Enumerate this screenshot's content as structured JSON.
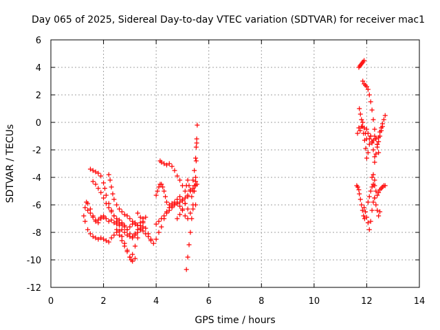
{
  "chart_data": {
    "type": "scatter",
    "title": "Day 065 of 2025, Sidereal Day-to-day VTEC variation (SDTVAR) for receiver mac1",
    "xlabel": "GPS time / hours",
    "ylabel": "SDTVAR / TECUs",
    "xlim": [
      0,
      14
    ],
    "ylim": [
      -12,
      6
    ],
    "grid": true,
    "marker": "+",
    "color": "#ff0000",
    "xticks": [
      {
        "value": 0,
        "label": "0"
      },
      {
        "value": 2,
        "label": "2"
      },
      {
        "value": 4,
        "label": "4"
      },
      {
        "value": 6,
        "label": "6"
      },
      {
        "value": 8,
        "label": "8"
      },
      {
        "value": 10,
        "label": "10"
      },
      {
        "value": 12,
        "label": "12"
      },
      {
        "value": 14,
        "label": "14"
      }
    ],
    "yticks": [
      {
        "value": -12,
        "label": "-12"
      },
      {
        "value": -10,
        "label": "-10"
      },
      {
        "value": -8,
        "label": "-8"
      },
      {
        "value": -6,
        "label": "-6"
      },
      {
        "value": -4,
        "label": "-4"
      },
      {
        "value": -2,
        "label": "-2"
      },
      {
        "value": 0,
        "label": "0"
      },
      {
        "value": 2,
        "label": "2"
      },
      {
        "value": 4,
        "label": "4"
      },
      {
        "value": 6,
        "label": "6"
      }
    ],
    "series": [
      {
        "name": "trace-1",
        "x": [
          1.25,
          1.3,
          1.35,
          1.4,
          1.5,
          1.6,
          1.7,
          1.8,
          1.9,
          2.0
        ],
        "y": [
          -6.8,
          -6.2,
          -5.8,
          -5.9,
          -6.3,
          -6.8,
          -7.2,
          -7.1,
          -6.9,
          -6.8
        ]
      },
      {
        "name": "trace-2",
        "x": [
          1.3,
          1.4,
          1.5,
          1.6,
          1.7,
          1.8,
          1.9,
          2.0,
          2.1,
          2.2,
          2.3,
          2.4,
          2.5,
          2.6,
          2.7,
          2.8,
          2.9,
          3.0,
          3.1,
          3.2
        ],
        "y": [
          -7.2,
          -7.8,
          -8.1,
          -8.3,
          -8.4,
          -8.5,
          -8.4,
          -8.5,
          -8.6,
          -8.7,
          -8.4,
          -8.2,
          -8.0,
          -7.9,
          -8.3,
          -8.8,
          -9.3,
          -9.8,
          -10.1,
          -9.9
        ]
      },
      {
        "name": "trace-3",
        "x": [
          1.5,
          1.6,
          1.7,
          1.8,
          1.9,
          2.0,
          2.05,
          2.1,
          2.2,
          2.3,
          2.4,
          2.5,
          2.6,
          2.7,
          2.8,
          2.9,
          3.0,
          3.1,
          3.2,
          3.3,
          3.4,
          3.5
        ],
        "y": [
          -3.4,
          -3.5,
          -3.6,
          -3.7,
          -3.9,
          -4.4,
          -4.8,
          -5.3,
          -5.9,
          -6.4,
          -6.8,
          -7.2,
          -7.5,
          -7.8,
          -8.0,
          -8.2,
          -8.3,
          -8.4,
          -8.2,
          -8.0,
          -7.8,
          -7.6
        ]
      },
      {
        "name": "trace-4",
        "x": [
          1.4,
          1.5,
          1.6,
          1.7,
          1.8,
          1.9,
          2.0,
          2.1,
          2.2,
          2.3,
          2.4,
          2.5,
          2.6,
          2.7,
          2.8,
          2.9,
          3.0,
          3.1,
          3.2,
          3.3,
          3.4,
          3.5,
          3.6,
          3.7,
          3.8
        ],
        "y": [
          -6.4,
          -6.6,
          -6.9,
          -7.1,
          -7.3,
          -7.0,
          -6.9,
          -7.0,
          -7.2,
          -7.1,
          -7.3,
          -7.4,
          -7.3,
          -7.4,
          -7.6,
          -7.8,
          -7.6,
          -7.4,
          -7.3,
          -7.5,
          -7.7,
          -7.9,
          -8.1,
          -8.3,
          -8.6
        ]
      },
      {
        "name": "trace-5",
        "x": [
          1.6,
          1.7,
          1.8,
          1.9,
          2.0,
          2.1,
          2.2,
          2.3,
          2.4,
          2.5,
          2.6,
          2.7,
          2.8,
          2.9,
          3.0,
          3.1,
          3.2,
          3.3,
          3.4
        ],
        "y": [
          -4.3,
          -4.5,
          -4.8,
          -5.1,
          -5.5,
          -5.9,
          -6.2,
          -6.5,
          -6.8,
          -7.0,
          -7.1,
          -7.3,
          -7.5,
          -7.8,
          -8.1,
          -8.3,
          -8.1,
          -7.8,
          -7.5
        ]
      },
      {
        "name": "trace-6",
        "x": [
          2.2,
          2.25,
          2.3,
          2.35,
          2.4,
          2.5,
          2.6,
          2.7,
          2.8,
          2.9,
          3.0,
          3.1,
          3.2,
          3.3,
          3.4,
          3.5,
          3.6
        ],
        "y": [
          -3.8,
          -4.2,
          -4.7,
          -5.2,
          -5.6,
          -6.0,
          -6.3,
          -6.5,
          -6.7,
          -6.8,
          -7.0,
          -7.2,
          -7.4,
          -7.5,
          -7.3,
          -7.0,
          -6.9
        ]
      },
      {
        "name": "trace-7",
        "x": [
          2.5,
          2.6,
          2.7,
          2.8,
          2.9,
          3.0,
          3.05,
          3.1,
          3.2,
          3.3,
          3.4,
          3.5
        ],
        "y": [
          -7.8,
          -8.2,
          -8.6,
          -9.0,
          -9.4,
          -9.8,
          -10.0,
          -9.6,
          -9.0,
          -8.4,
          -7.8,
          -7.2
        ]
      },
      {
        "name": "trace-8",
        "x": [
          3.3,
          3.4,
          3.5,
          3.6,
          3.7,
          3.8,
          3.9,
          4.0,
          4.1,
          4.2,
          4.3,
          4.4,
          4.5,
          4.6,
          4.7,
          4.8,
          4.9,
          5.0,
          5.1,
          5.2
        ],
        "y": [
          -6.6,
          -6.9,
          -7.3,
          -7.7,
          -8.1,
          -8.5,
          -8.8,
          -8.5,
          -8.0,
          -7.6,
          -7.0,
          -6.6,
          -6.4,
          -6.2,
          -6.0,
          -5.9,
          -6.1,
          -6.4,
          -6.8,
          -7.0
        ]
      },
      {
        "name": "trace-9",
        "x": [
          4.0,
          4.1,
          4.2,
          4.3,
          4.4,
          4.5,
          4.6,
          4.7,
          4.8,
          4.9,
          5.0,
          5.1,
          5.2,
          5.3,
          5.4,
          5.5
        ],
        "y": [
          -7.4,
          -7.2,
          -7.0,
          -6.8,
          -6.5,
          -6.2,
          -5.9,
          -5.8,
          -5.6,
          -5.4,
          -5.6,
          -5.9,
          -6.3,
          -6.6,
          -6.3,
          -6.0
        ]
      },
      {
        "name": "trace-10",
        "x": [
          4.0,
          4.05,
          4.1,
          4.15,
          4.2,
          4.25,
          4.3,
          4.35,
          4.4,
          4.5,
          4.6,
          4.7,
          4.8,
          4.9,
          5.0,
          5.1,
          5.2,
          5.3,
          5.4,
          5.5
        ],
        "y": [
          -5.3,
          -5.0,
          -4.7,
          -4.5,
          -4.5,
          -4.7,
          -5.0,
          -5.4,
          -5.8,
          -6.0,
          -6.1,
          -6.0,
          -5.9,
          -5.8,
          -5.7,
          -5.5,
          -5.3,
          -5.0,
          -4.8,
          -4.6
        ]
      },
      {
        "name": "trace-11",
        "x": [
          4.15,
          4.2,
          4.3,
          4.4,
          4.5,
          4.6,
          4.7,
          4.8,
          4.9,
          5.0,
          5.1,
          5.15,
          5.2,
          5.25,
          5.3,
          5.35,
          5.4,
          5.45,
          5.5,
          5.55
        ],
        "y": [
          -2.8,
          -2.9,
          -3.0,
          -3.1,
          -3.0,
          -3.2,
          -3.5,
          -3.9,
          -4.2,
          -4.6,
          -5.0,
          -4.6,
          -4.2,
          -4.6,
          -5.0,
          -5.4,
          -5.0,
          -4.6,
          -4.3,
          -4.5
        ]
      },
      {
        "name": "trace-12",
        "x": [
          5.15,
          5.2,
          5.25,
          5.3,
          5.35,
          5.4,
          5.45,
          5.5,
          5.52,
          5.54,
          5.56
        ],
        "y": [
          -10.7,
          -9.8,
          -8.9,
          -8.0,
          -7.0,
          -6.0,
          -5.0,
          -4.0,
          -2.8,
          -1.5,
          -0.2
        ]
      },
      {
        "name": "trace-13",
        "x": [
          4.8,
          4.9,
          5.0,
          5.1,
          5.2,
          5.3,
          5.4,
          5.45,
          5.5,
          5.52,
          5.54
        ],
        "y": [
          -7.0,
          -6.7,
          -6.3,
          -5.9,
          -5.4,
          -4.9,
          -4.2,
          -3.5,
          -2.6,
          -1.8,
          -1.2
        ]
      },
      {
        "name": "trace-14",
        "x": [
          11.62,
          11.66,
          11.7
        ],
        "y": [
          -4.6,
          -4.7,
          -4.9
        ]
      },
      {
        "name": "trace-15",
        "x": [
          11.72,
          11.76,
          11.8,
          11.84,
          11.88,
          11.92
        ],
        "y": [
          -5.2,
          -5.6,
          -6.0,
          -6.4,
          -6.8,
          -7.0
        ]
      },
      {
        "name": "trace-16",
        "x": [
          11.65,
          11.7,
          11.75,
          11.8,
          11.85,
          11.9,
          11.95,
          12.0
        ],
        "y": [
          -0.8,
          -0.4,
          -0.6,
          -0.3,
          0.0,
          -0.4,
          -0.8,
          -1.2
        ]
      },
      {
        "name": "trace-17",
        "x": [
          11.7,
          11.74,
          11.78,
          11.82,
          11.86,
          11.9
        ],
        "y": [
          4.0,
          4.1,
          4.2,
          4.3,
          4.4,
          4.5
        ]
      },
      {
        "name": "trace-18",
        "x": [
          11.85,
          11.9,
          11.95,
          12.0,
          12.05,
          12.1,
          12.15,
          12.2,
          12.25,
          12.3,
          12.35,
          12.4,
          12.45
        ],
        "y": [
          3.0,
          2.8,
          2.7,
          2.6,
          2.4,
          2.0,
          1.5,
          0.9,
          0.2,
          -0.5,
          -1.2,
          -1.8,
          -2.2
        ]
      },
      {
        "name": "trace-19",
        "x": [
          11.72,
          11.76,
          11.8,
          11.84,
          11.88,
          11.92,
          11.96,
          12.0,
          12.05,
          12.1,
          12.15,
          12.2,
          12.25,
          12.3
        ],
        "y": [
          1.0,
          0.6,
          0.2,
          -0.3,
          -0.8,
          -1.3,
          -1.9,
          -2.6,
          -2.2,
          -1.6,
          -1.0,
          -1.5,
          -2.0,
          -2.5
        ]
      },
      {
        "name": "trace-20",
        "x": [
          12.3,
          12.35,
          12.4,
          12.45,
          12.5,
          12.55,
          12.6,
          12.65,
          12.7
        ],
        "y": [
          -2.9,
          -2.3,
          -1.6,
          -1.1,
          -0.7,
          -0.4,
          -0.1,
          0.2,
          0.5
        ]
      },
      {
        "name": "trace-21",
        "x": [
          12.0,
          12.05,
          12.1,
          12.15,
          12.2,
          12.25,
          12.3,
          12.35,
          12.4,
          12.45,
          12.5,
          12.55,
          12.6
        ],
        "y": [
          -0.5,
          -0.8,
          -1.2,
          -1.0,
          -1.4,
          -1.3,
          -1.0,
          -1.2,
          -1.6,
          -1.4,
          -1.0,
          -0.6,
          -0.3
        ]
      },
      {
        "name": "trace-22",
        "x": [
          11.9,
          11.95,
          12.0,
          12.05,
          12.1,
          12.15,
          12.2,
          12.25,
          12.3
        ],
        "y": [
          -6.2,
          -6.5,
          -6.9,
          -7.3,
          -7.8,
          -7.2,
          -6.4,
          -5.8,
          -5.5
        ]
      },
      {
        "name": "trace-23",
        "x": [
          12.05,
          12.1,
          12.15,
          12.2,
          12.25,
          12.3,
          12.35,
          12.4,
          12.45,
          12.5,
          12.55,
          12.6,
          12.65,
          12.7
        ],
        "y": [
          -5.8,
          -5.4,
          -5.0,
          -4.7,
          -4.5,
          -4.6,
          -5.0,
          -5.3,
          -5.1,
          -4.9,
          -4.8,
          -4.7,
          -4.6,
          -4.6
        ]
      },
      {
        "name": "trace-24",
        "x": [
          12.3,
          12.35,
          12.4,
          12.45,
          12.5
        ],
        "y": [
          -5.5,
          -6.0,
          -6.4,
          -6.8,
          -6.5
        ]
      },
      {
        "name": "trace-25",
        "x": [
          12.2,
          12.25,
          12.3
        ],
        "y": [
          -4.0,
          -3.8,
          -4.2
        ]
      }
    ]
  }
}
